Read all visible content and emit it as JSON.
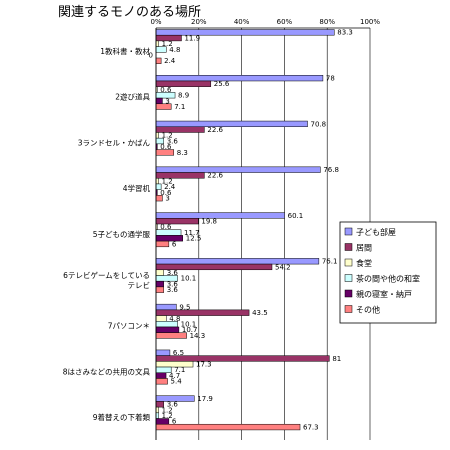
{
  "chart_data": {
    "type": "bar",
    "orientation": "horizontal",
    "title": "関連するモノのある場所",
    "xlim": [
      0,
      100
    ],
    "x_ticks": [
      "0%",
      "20%",
      "40%",
      "60%",
      "80%",
      "100%"
    ],
    "grid": true,
    "legend_position": "right",
    "categories": [
      [
        "1教科書・教材"
      ],
      [
        "2遊び道具"
      ],
      [
        "3ランドセル・かばん"
      ],
      [
        "4学習机"
      ],
      [
        "5子どもの通学服"
      ],
      [
        "6テレビゲームをしている",
        "テレビ"
      ],
      [
        "7パソコン＊"
      ],
      [
        "8はさみなどの共用の文具"
      ],
      [
        "9着替えの下着類"
      ]
    ],
    "series": [
      {
        "name": "子ども部屋",
        "color": "#9999ff",
        "values": [
          83.3,
          78,
          70.8,
          76.8,
          60.1,
          76.1,
          9.5,
          6.5,
          17.9
        ]
      },
      {
        "name": "居間",
        "color": "#993366",
        "values": [
          11.9,
          25.6,
          22.6,
          22.6,
          19.8,
          54.2,
          43.5,
          81,
          3.6
        ]
      },
      {
        "name": "食堂",
        "color": "#ffffcc",
        "values": [
          1.2,
          0.6,
          1.2,
          1.2,
          0.6,
          3.6,
          4.8,
          17.3,
          1.2
        ]
      },
      {
        "name": "茶の間や他の和室",
        "color": "#ccffff",
        "values": [
          4.8,
          8.9,
          3.6,
          2.4,
          11.7,
          10.1,
          10.1,
          7.1,
          1.2
        ]
      },
      {
        "name": "親の寝室・納戸",
        "color": "#660066",
        "values": [
          0,
          3,
          0.6,
          0.6,
          12.5,
          3.6,
          10.7,
          4.7,
          6
        ]
      },
      {
        "name": "その他",
        "color": "#ff8080",
        "values": [
          2.4,
          7.1,
          8.3,
          3,
          6,
          3.6,
          14.3,
          5.4,
          67.3
        ]
      }
    ]
  }
}
